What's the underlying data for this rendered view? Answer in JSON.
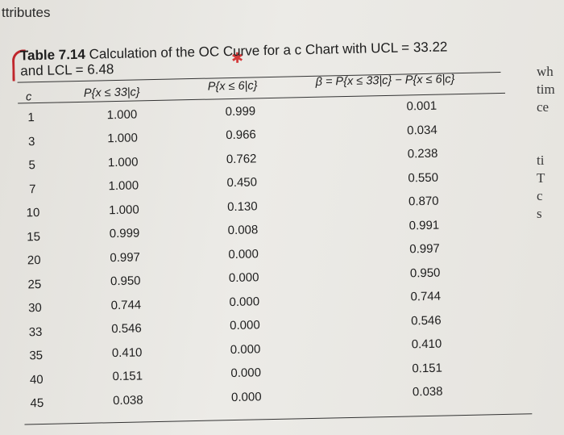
{
  "fragments": {
    "top_left": "ttributes",
    "right_margin": [
      "wh",
      "tim",
      "ce",
      "",
      "",
      "ti",
      "T",
      "c",
      "s"
    ]
  },
  "table": {
    "title_label": "Table 7.14",
    "title_text": "Calculation of the OC Curve for a c Chart with UCL = 33.22",
    "title_line2": "and LCL = 6.48",
    "headers": {
      "c": "c",
      "p_le_33": "P{x ≤ 33|c}",
      "p_le_6": "P{x ≤ 6|c}",
      "beta": "β = P{x ≤ 33|c} − P{x ≤ 6|c}"
    },
    "rows": [
      {
        "c": "1",
        "p33": "1.000",
        "p6": "0.999",
        "beta": "0.001"
      },
      {
        "c": "3",
        "p33": "1.000",
        "p6": "0.966",
        "beta": "0.034"
      },
      {
        "c": "5",
        "p33": "1.000",
        "p6": "0.762",
        "beta": "0.238"
      },
      {
        "c": "7",
        "p33": "1.000",
        "p6": "0.450",
        "beta": "0.550"
      },
      {
        "c": "10",
        "p33": "1.000",
        "p6": "0.130",
        "beta": "0.870"
      },
      {
        "c": "15",
        "p33": "0.999",
        "p6": "0.008",
        "beta": "0.991"
      },
      {
        "c": "20",
        "p33": "0.997",
        "p6": "0.000",
        "beta": "0.997"
      },
      {
        "c": "25",
        "p33": "0.950",
        "p6": "0.000",
        "beta": "0.950"
      },
      {
        "c": "30",
        "p33": "0.744",
        "p6": "0.000",
        "beta": "0.744"
      },
      {
        "c": "33",
        "p33": "0.546",
        "p6": "0.000",
        "beta": "0.546"
      },
      {
        "c": "35",
        "p33": "0.410",
        "p6": "0.000",
        "beta": "0.410"
      },
      {
        "c": "40",
        "p33": "0.151",
        "p6": "0.000",
        "beta": "0.151"
      },
      {
        "c": "45",
        "p33": "0.038",
        "p6": "0.000",
        "beta": "0.038"
      }
    ]
  }
}
